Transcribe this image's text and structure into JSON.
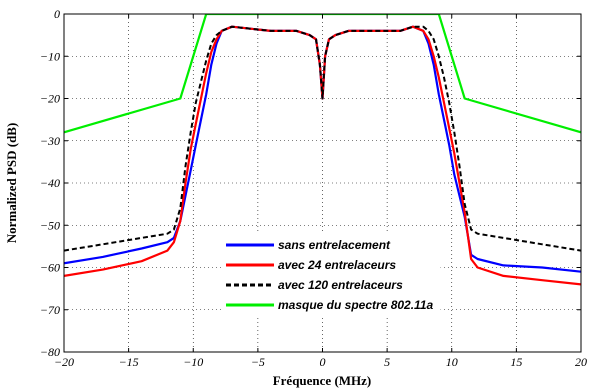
{
  "chart_data": {
    "type": "line",
    "title": "",
    "xlabel": "Fréquence (MHz)",
    "ylabel": "Normalized PSD (dB)",
    "xlim": [
      -20,
      20
    ],
    "ylim": [
      -80,
      0
    ],
    "xticks": [
      -20,
      -15,
      -10,
      -5,
      0,
      5,
      10,
      15,
      20
    ],
    "yticks": [
      0,
      -10,
      -20,
      -30,
      -40,
      -50,
      -60,
      -70,
      -80
    ],
    "xtick_labels": [
      "−20",
      "−15",
      "−10",
      "−5",
      "0",
      "5",
      "10",
      "15",
      "20"
    ],
    "ytick_labels": [
      "0",
      "−10",
      "−20",
      "−30",
      "−40",
      "−50",
      "−60",
      "−70",
      "−80"
    ],
    "grid": true,
    "legend": "lower-center",
    "series": [
      {
        "name": "sans entrelacement",
        "color": "#0000ff",
        "style": "solid",
        "x": [
          -20,
          -17,
          -14,
          -12,
          -11.5,
          -11,
          -10.6,
          -10.2,
          -9.8,
          -9.4,
          -9,
          -8.6,
          -8.2,
          -7.8,
          -7,
          -4,
          -2,
          -1,
          -0.5,
          -0.2,
          0,
          0.2,
          0.5,
          1,
          2,
          4,
          6,
          7,
          7.8,
          8.2,
          8.6,
          9,
          9.4,
          9.8,
          10.2,
          10.6,
          11,
          11.5,
          12,
          14,
          17,
          20
        ],
        "y": [
          -59,
          -57.5,
          -55.5,
          -54,
          -53,
          -49,
          -43,
          -37,
          -31,
          -25,
          -19,
          -12,
          -7,
          -4,
          -3,
          -4,
          -4,
          -5,
          -6,
          -12,
          -20,
          -10,
          -6,
          -5,
          -4,
          -4,
          -4,
          -3,
          -4,
          -7,
          -12,
          -19,
          -25,
          -31,
          -38,
          -43,
          -48,
          -57,
          -58,
          -59.5,
          -60,
          -61
        ]
      },
      {
        "name": "avec 24 entrelaceurs",
        "color": "#ff0000",
        "style": "solid",
        "x": [
          -20,
          -17,
          -14,
          -12,
          -11.5,
          -11,
          -10.6,
          -10.2,
          -9.8,
          -9.4,
          -9,
          -8.6,
          -8.2,
          -7.8,
          -7,
          -4,
          -2,
          -1,
          -0.5,
          -0.2,
          0,
          0.2,
          0.5,
          1,
          2,
          4,
          6,
          7,
          7.8,
          8.2,
          8.6,
          9,
          9.4,
          9.8,
          10.2,
          10.6,
          11,
          11.5,
          12,
          14,
          17,
          20
        ],
        "y": [
          -62,
          -60.5,
          -58.5,
          -56,
          -54,
          -49,
          -40,
          -32,
          -26,
          -20,
          -14,
          -9,
          -6,
          -4,
          -3,
          -4,
          -4,
          -5,
          -6,
          -12,
          -20,
          -10,
          -6,
          -5,
          -4,
          -4,
          -4,
          -3,
          -4,
          -6,
          -10,
          -15,
          -21,
          -27,
          -33,
          -40,
          -47,
          -58,
          -60,
          -62,
          -63,
          -64
        ]
      },
      {
        "name": "avec 120 entrelaceurs",
        "color": "#000000",
        "style": "dashed",
        "x": [
          -20,
          -17,
          -14,
          -12,
          -11.5,
          -11,
          -10.6,
          -10.2,
          -9.8,
          -9.4,
          -9,
          -8.6,
          -8.2,
          -7.8,
          -7,
          -4,
          -2,
          -1,
          -0.5,
          -0.2,
          0,
          0.2,
          0.5,
          1,
          2,
          4,
          6,
          7,
          7.8,
          8.2,
          8.6,
          9,
          9.4,
          9.8,
          10.2,
          10.6,
          11,
          11.5,
          12,
          14,
          17,
          20
        ],
        "y": [
          -56,
          -54.5,
          -53,
          -52,
          -51,
          -46,
          -36,
          -28,
          -21,
          -16,
          -11,
          -7,
          -5,
          -4,
          -3,
          -4,
          -4,
          -5,
          -6,
          -12,
          -20,
          -10,
          -6,
          -5,
          -4,
          -4,
          -4,
          -3,
          -3,
          -4,
          -6,
          -10,
          -15,
          -21,
          -28,
          -36,
          -45,
          -51,
          -52,
          -53,
          -54.5,
          -56
        ]
      },
      {
        "name": "masque du spectre 802.11a",
        "color": "#00ee00",
        "style": "solid",
        "x": [
          -20,
          -11,
          -9,
          9,
          11,
          20
        ],
        "y": [
          -28,
          -20,
          0,
          0,
          -20,
          -28
        ]
      }
    ]
  }
}
